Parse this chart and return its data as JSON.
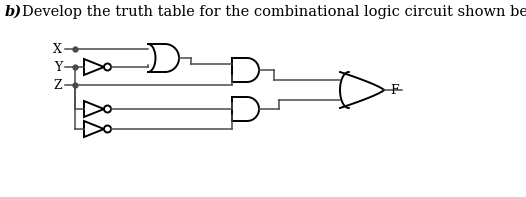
{
  "title_bold": "b)",
  "title_text": "Develop the truth table for the combinational logic circuit shown below.",
  "title_fontsize": 10.5,
  "bg_color": "#ffffff",
  "text_color": "#000000",
  "inputs": [
    "X",
    "Y",
    "Z"
  ],
  "output": "F",
  "wire_color": "#4a4a4a",
  "gate_color": "#000000",
  "gate_linewidth": 1.4,
  "wire_linewidth": 1.1,
  "fig_w": 5.26,
  "fig_h": 1.97,
  "dpi": 100
}
